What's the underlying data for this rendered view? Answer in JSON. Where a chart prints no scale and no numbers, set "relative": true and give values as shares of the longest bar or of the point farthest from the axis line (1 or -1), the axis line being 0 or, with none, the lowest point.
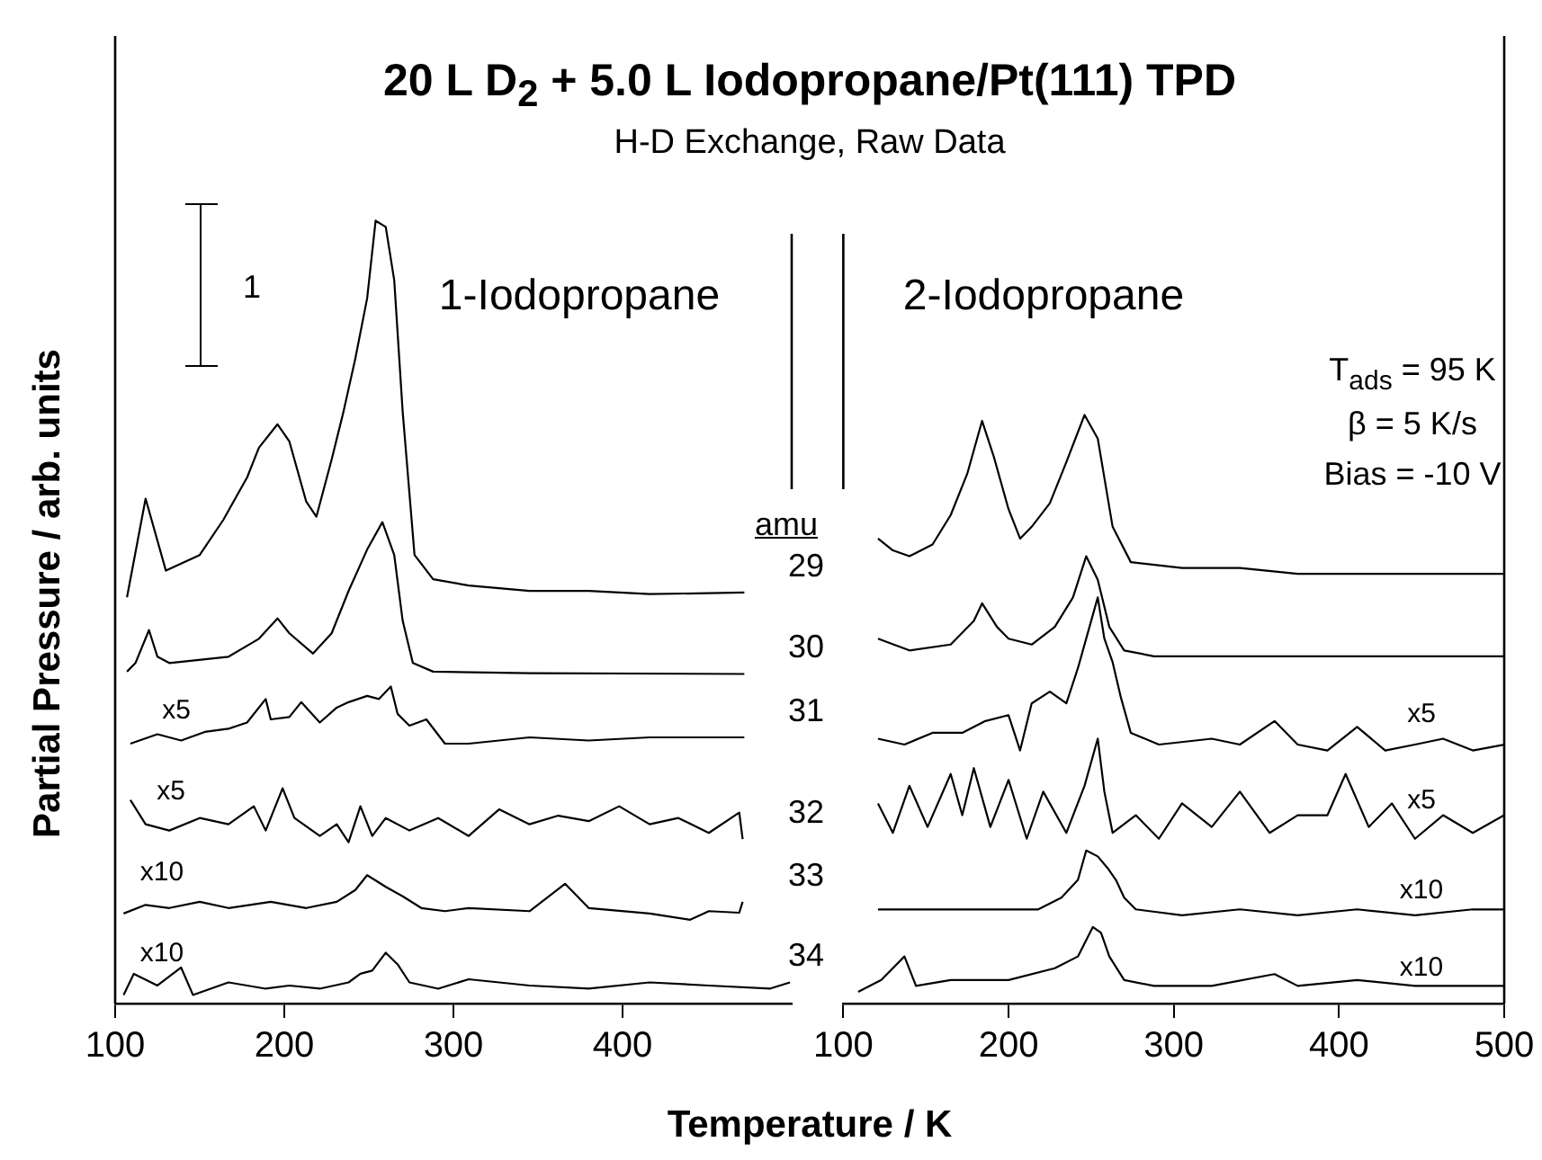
{
  "chart_data": [
    {
      "type": "line",
      "title": "20 L D$_{2}$ + 5.0 L Iodopropane/Pt(111) TPD",
      "subtitle": "H-D Exchange, Raw Data",
      "xlabel": "Temperature / K",
      "ylabel": "Partial Pressure / arb. units",
      "relative": true,
      "marker": "none",
      "xlim": [
        100,
        500
      ],
      "xticks": [
        100,
        200,
        300,
        400
      ],
      "annotations": [
        "1",
        "1-Iodopropane",
        "amu",
        "x5",
        "x5",
        "x10",
        "x10"
      ],
      "series": [
        {
          "name": "29",
          "color": "#000000",
          "x": [
            107,
            118,
            130,
            150,
            164,
            178,
            185,
            196,
            203,
            213,
            219,
            228,
            235,
            242,
            249,
            254,
            260,
            265,
            270,
            277,
            288,
            309,
            345,
            380,
            416,
            472
          ],
          "values": [
            0.519,
            0.645,
            0.553,
            0.573,
            0.618,
            0.672,
            0.71,
            0.74,
            0.718,
            0.641,
            0.622,
            0.695,
            0.756,
            0.824,
            0.901,
            1.0,
            0.992,
            0.924,
            0.756,
            0.573,
            0.542,
            0.534,
            0.527,
            0.527,
            0.523,
            0.525
          ]
        },
        {
          "name": "30",
          "color": "#000000",
          "x": [
            107,
            112,
            120,
            125,
            132,
            167,
            185,
            196,
            203,
            217,
            228,
            238,
            249,
            258,
            265,
            270,
            276,
            288,
            345,
            472
          ],
          "values": [
            0.424,
            0.435,
            0.477,
            0.443,
            0.435,
            0.443,
            0.466,
            0.492,
            0.473,
            0.447,
            0.473,
            0.527,
            0.58,
            0.615,
            0.573,
            0.489,
            0.435,
            0.424,
            0.422,
            0.421
          ]
        },
        {
          "name": "31",
          "color": "#000000",
          "x": [
            109,
            125,
            139,
            153,
            167,
            178,
            189,
            192,
            203,
            210,
            221,
            231,
            238,
            249,
            256,
            263,
            267,
            274,
            284,
            295,
            309,
            345,
            380,
            416,
            451,
            472
          ],
          "values": [
            0.332,
            0.344,
            0.336,
            0.347,
            0.351,
            0.359,
            0.389,
            0.363,
            0.366,
            0.385,
            0.359,
            0.378,
            0.385,
            0.393,
            0.389,
            0.405,
            0.37,
            0.355,
            0.363,
            0.332,
            0.332,
            0.34,
            0.336,
            0.34,
            0.34,
            0.34
          ]
        },
        {
          "name": "32",
          "color": "#000000",
          "x": [
            109,
            118,
            132,
            150,
            167,
            182,
            189,
            199,
            206,
            221,
            231,
            238,
            245,
            252,
            260,
            274,
            291,
            309,
            327,
            345,
            362,
            380,
            398,
            416,
            433,
            451,
            469,
            471
          ],
          "values": [
            0.26,
            0.229,
            0.221,
            0.237,
            0.229,
            0.252,
            0.221,
            0.275,
            0.237,
            0.214,
            0.229,
            0.206,
            0.252,
            0.214,
            0.237,
            0.221,
            0.237,
            0.214,
            0.248,
            0.229,
            0.24,
            0.233,
            0.252,
            0.229,
            0.237,
            0.218,
            0.244,
            0.21
          ]
        },
        {
          "name": "33",
          "color": "#000000",
          "x": [
            105,
            118,
            132,
            150,
            167,
            192,
            213,
            231,
            242,
            249,
            260,
            270,
            281,
            295,
            309,
            345,
            366,
            380,
            416,
            440,
            451,
            469,
            471
          ],
          "values": [
            0.115,
            0.126,
            0.122,
            0.13,
            0.122,
            0.13,
            0.122,
            0.13,
            0.145,
            0.164,
            0.149,
            0.137,
            0.122,
            0.118,
            0.122,
            0.118,
            0.153,
            0.122,
            0.115,
            0.107,
            0.118,
            0.116,
            0.13
          ]
        },
        {
          "name": "34",
          "color": "#000000",
          "x": [
            105,
            111,
            125,
            139,
            146,
            167,
            189,
            203,
            221,
            238,
            245,
            252,
            260,
            267,
            274,
            291,
            309,
            345,
            380,
            416,
            451,
            487,
            499
          ],
          "values": [
            0.011,
            0.038,
            0.023,
            0.046,
            0.011,
            0.027,
            0.019,
            0.023,
            0.019,
            0.027,
            0.038,
            0.042,
            0.065,
            0.05,
            0.027,
            0.019,
            0.031,
            0.023,
            0.019,
            0.027,
            0.023,
            0.019,
            0.027
          ]
        }
      ]
    },
    {
      "type": "line",
      "relative": true,
      "marker": "none",
      "xlim": [
        100,
        500
      ],
      "xticks": [
        100,
        200,
        300,
        400,
        500
      ],
      "annotations": [
        "2-Iodopropane",
        "T$_{ads}$ = 95 K",
        "β = 5 K/s",
        "Bias = -10 V",
        "x5",
        "x5",
        "x10",
        "x10"
      ],
      "series": [
        {
          "color": "#000000",
          "x": [
            121,
            130,
            140,
            154,
            165,
            175,
            184,
            191,
            200,
            207,
            214,
            225,
            235,
            246,
            254,
            263,
            274,
            305,
            340,
            375,
            411,
            446,
            500
          ],
          "values": [
            0.79,
            0.77,
            0.76,
            0.78,
            0.83,
            0.9,
            0.99,
            0.93,
            0.84,
            0.79,
            0.81,
            0.85,
            0.92,
            1,
            0.96,
            0.81,
            0.75,
            0.74,
            0.74,
            0.73,
            0.73,
            0.73,
            0.73
          ]
        },
        {
          "color": "#000000",
          "x": [
            121,
            140,
            165,
            179,
            184,
            193,
            200,
            214,
            228,
            239,
            247,
            254,
            261,
            270,
            288,
            340,
            411,
            500
          ],
          "values": [
            0.62,
            0.6,
            0.61,
            0.65,
            0.68,
            0.64,
            0.62,
            0.61,
            0.64,
            0.69,
            0.76,
            0.72,
            0.64,
            0.6,
            0.59,
            0.59,
            0.59,
            0.59
          ]
        },
        {
          "color": "#000000",
          "x": [
            121,
            137,
            154,
            172,
            186,
            200,
            207,
            214,
            225,
            235,
            242,
            249,
            254,
            258,
            263,
            268,
            274,
            291,
            323,
            340,
            361,
            375,
            393,
            411,
            428,
            446,
            463,
            481,
            500
          ],
          "values": [
            0.45,
            0.44,
            0.46,
            0.46,
            0.48,
            0.49,
            0.43,
            0.51,
            0.53,
            0.51,
            0.57,
            0.64,
            0.69,
            0.62,
            0.58,
            0.52,
            0.46,
            0.44,
            0.45,
            0.44,
            0.48,
            0.44,
            0.43,
            0.47,
            0.43,
            0.44,
            0.45,
            0.43,
            0.44
          ]
        },
        {
          "color": "#000000",
          "x": [
            121,
            130,
            140,
            151,
            165,
            172,
            179,
            189,
            200,
            211,
            221,
            235,
            246,
            254,
            258,
            263,
            277,
            291,
            305,
            323,
            340,
            358,
            375,
            393,
            404,
            418,
            432,
            446,
            463,
            481,
            500
          ],
          "values": [
            0.34,
            0.29,
            0.37,
            0.3,
            0.39,
            0.32,
            0.4,
            0.3,
            0.38,
            0.28,
            0.36,
            0.29,
            0.37,
            0.45,
            0.36,
            0.29,
            0.32,
            0.28,
            0.34,
            0.3,
            0.36,
            0.29,
            0.32,
            0.32,
            0.39,
            0.3,
            0.34,
            0.28,
            0.32,
            0.29,
            0.32
          ]
        },
        {
          "color": "#000000",
          "x": [
            121,
            147,
            182,
            218,
            232,
            242,
            247,
            254,
            260,
            265,
            270,
            277,
            305,
            340,
            375,
            411,
            446,
            481,
            500
          ],
          "values": [
            0.16,
            0.16,
            0.16,
            0.16,
            0.18,
            0.21,
            0.26,
            0.25,
            0.23,
            0.21,
            0.18,
            0.16,
            0.15,
            0.16,
            0.15,
            0.16,
            0.15,
            0.16,
            0.16
          ]
        },
        {
          "color": "#000000",
          "x": [
            109,
            123,
            137,
            144,
            165,
            200,
            228,
            242,
            251,
            256,
            261,
            270,
            288,
            323,
            361,
            375,
            411,
            446,
            481,
            500
          ],
          "values": [
            0.02,
            0.04,
            0.08,
            0.03,
            0.04,
            0.04,
            0.06,
            0.08,
            0.13,
            0.12,
            0.08,
            0.04,
            0.03,
            0.03,
            0.05,
            0.03,
            0.04,
            0.03,
            0.03,
            0.03
          ]
        }
      ]
    }
  ]
}
